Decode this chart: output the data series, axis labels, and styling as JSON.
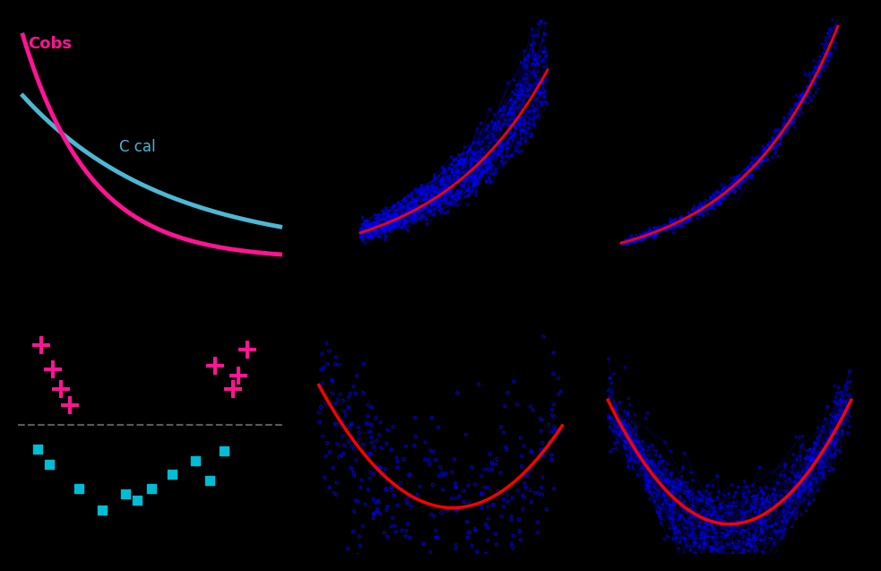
{
  "bg_color": "#000000",
  "cobs_color": "#ff1493",
  "ccal_color": "#4db8d4",
  "blue_scatter_color": "#0000ff",
  "red_line_color": "#ff0000",
  "pink_plus_color": "#ff1493",
  "cyan_sq_color": "#00bcd4",
  "gray_dash_color": "#808080",
  "cobs_label": "Cobs",
  "ccal_label": "C cal",
  "seed": 42
}
